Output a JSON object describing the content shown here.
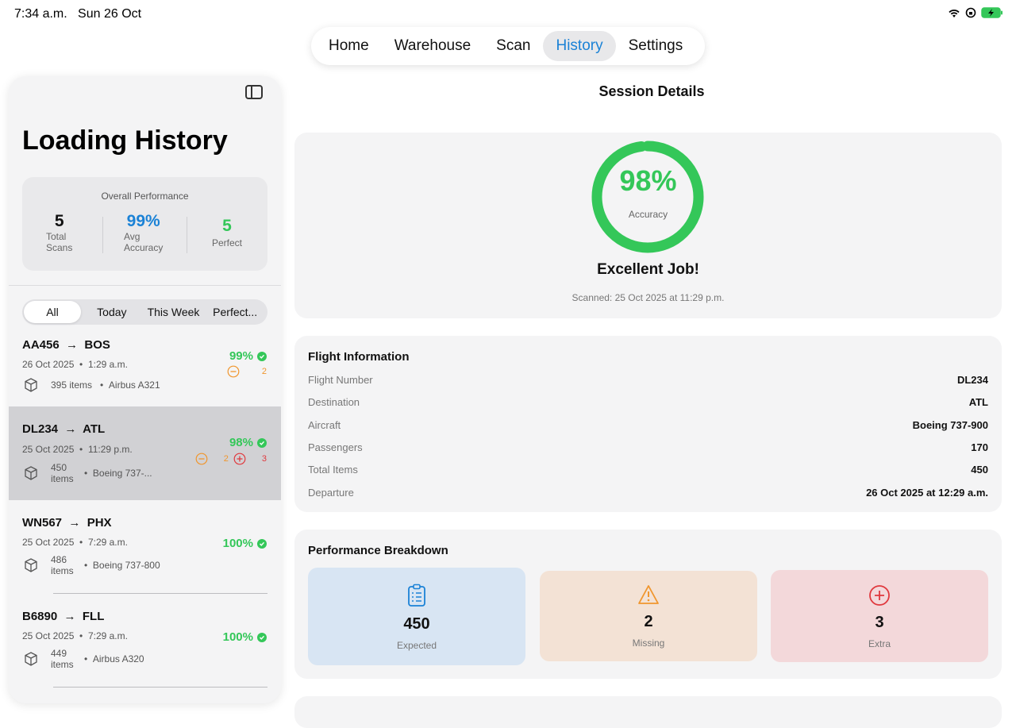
{
  "status": {
    "time": "7:34 a.m.",
    "date": "Sun 26 Oct"
  },
  "tabs": [
    {
      "label": "Home"
    },
    {
      "label": "Warehouse"
    },
    {
      "label": "Scan"
    },
    {
      "label": "History",
      "active": true
    },
    {
      "label": "Settings"
    }
  ],
  "sidebar": {
    "title": "Loading History",
    "performance": {
      "title": "Overall Performance",
      "total_scans": "5",
      "total_scans_label_1": "Total",
      "total_scans_label_2": "Scans",
      "avg_accuracy": "99%",
      "avg_accuracy_label_1": "Avg",
      "avg_accuracy_label_2": "Accuracy",
      "perfect": "5",
      "perfect_label": "Perfect"
    },
    "filters": [
      "All",
      "Today",
      "This Week",
      "Perfect..."
    ],
    "sessions": [
      {
        "flight": "AA456",
        "dest": "BOS",
        "date": "26 Oct 2025",
        "time": "1:29 a.m.",
        "items": "395 items",
        "aircraft": "Airbus A321",
        "accuracy": "99%",
        "missing": "2",
        "extra": ""
      },
      {
        "flight": "DL234",
        "dest": "ATL",
        "date": "25 Oct 2025",
        "time": "11:29 p.m.",
        "items_1": "450",
        "items_2": "items",
        "aircraft": "Boeing 737-...",
        "accuracy": "98%",
        "missing": "2",
        "extra": "3"
      },
      {
        "flight": "WN567",
        "dest": "PHX",
        "date": "25 Oct 2025",
        "time": "7:29 a.m.",
        "items_1": "486",
        "items_2": "items",
        "aircraft": "Boeing 737-800",
        "accuracy": "100%"
      },
      {
        "flight": "B6890",
        "dest": "FLL",
        "date": "25 Oct 2025",
        "time": "7:29 a.m.",
        "items_1": "449",
        "items_2": "items",
        "aircraft": "Airbus A320",
        "accuracy": "100%"
      }
    ]
  },
  "detail": {
    "title": "Session Details",
    "score": {
      "value": "98%",
      "fraction": 0.98,
      "label": "Accuracy",
      "message": "Excellent Job!",
      "scanned": "Scanned: 25 Oct 2025 at 11:29 p.m."
    },
    "flight_info": {
      "title": "Flight Information",
      "rows": [
        {
          "key": "Flight Number",
          "value": "DL234"
        },
        {
          "key": "Destination",
          "value": "ATL"
        },
        {
          "key": "Aircraft",
          "value": "Boeing 737-900"
        },
        {
          "key": "Passengers",
          "value": "170"
        },
        {
          "key": "Total Items",
          "value": "450"
        },
        {
          "key": "Departure",
          "value": "26 Oct 2025 at 12:29 a.m."
        }
      ]
    },
    "breakdown": {
      "title": "Performance Breakdown",
      "expected": "450",
      "expected_label": "Expected",
      "missing": "2",
      "missing_label": "Missing",
      "extra": "3",
      "extra_label": "Extra"
    }
  },
  "colors": {
    "accent": "#1b82d6",
    "success": "#34c759",
    "warning": "#f0962e",
    "danger": "#e0393e"
  }
}
